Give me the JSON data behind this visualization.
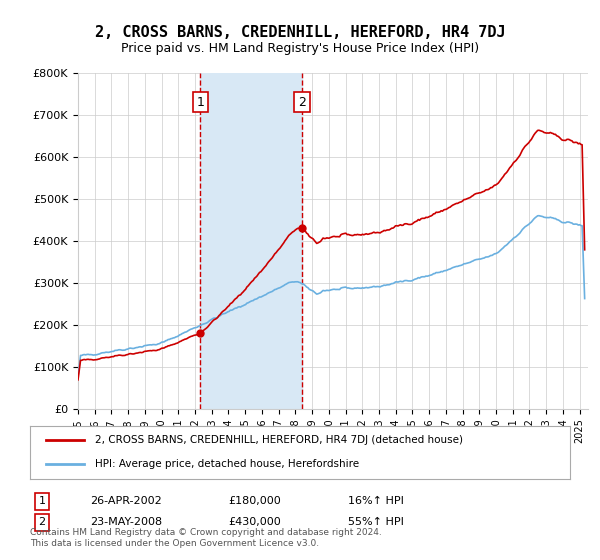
{
  "title": "2, CROSS BARNS, CREDENHILL, HEREFORD, HR4 7DJ",
  "subtitle": "Price paid vs. HM Land Registry's House Price Index (HPI)",
  "ylabel_ticks": [
    "£0",
    "£100K",
    "£200K",
    "£300K",
    "£400K",
    "£500K",
    "£600K",
    "£700K",
    "£800K"
  ],
  "ylim": [
    0,
    800000
  ],
  "xlim_start": 1995.0,
  "xlim_end": 2025.5,
  "transaction1": {
    "date_num": 2002.32,
    "price": 180000,
    "label": "1",
    "date_str": "26-APR-2002",
    "pct": "16%↑ HPI"
  },
  "transaction2": {
    "date_num": 2008.39,
    "price": 430000,
    "label": "2",
    "date_str": "23-MAY-2008",
    "pct": "55%↑ HPI"
  },
  "hpi_color": "#6ab0e0",
  "price_color": "#cc0000",
  "transaction_color": "#cc0000",
  "vline_color": "#cc0000",
  "shade_color": "#d8e8f5",
  "legend1_label": "2, CROSS BARNS, CREDENHILL, HEREFORD, HR4 7DJ (detached house)",
  "legend2_label": "HPI: Average price, detached house, Herefordshire",
  "footer": "Contains HM Land Registry data © Crown copyright and database right 2024.\nThis data is licensed under the Open Government Licence v3.0.",
  "background_color": "#ffffff",
  "grid_color": "#cccccc"
}
